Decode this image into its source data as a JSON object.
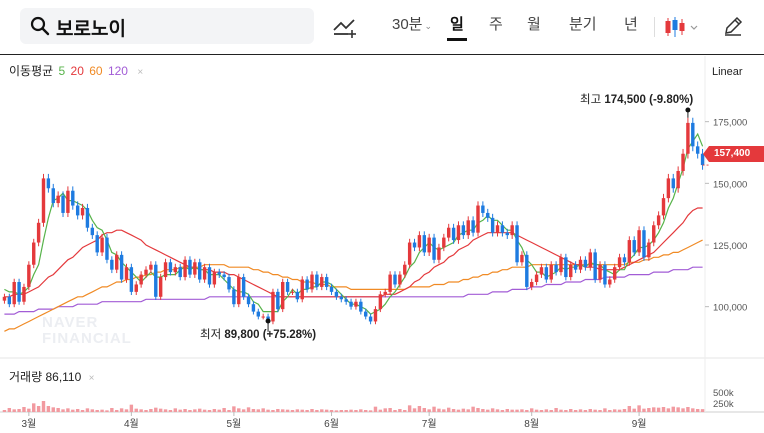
{
  "search": {
    "query": "보로노이"
  },
  "toolbar": {
    "interval": "30분",
    "tabs": [
      "일",
      "주",
      "월",
      "분기",
      "년"
    ],
    "active_tab": "일",
    "icons": [
      "trend-line-add-icon",
      "candlestick-icon",
      "pencil-icon"
    ]
  },
  "legend": {
    "label": "이동평균",
    "ma5": "5",
    "ma20": "20",
    "ma60": "60",
    "ma120": "120",
    "close": "×"
  },
  "scale": {
    "mode": "Linear"
  },
  "volume": {
    "label": "거래량",
    "value": "86,110",
    "close": "×"
  },
  "price_tag": "157,400",
  "watermark": [
    "NAVER",
    "FINANCIAL"
  ],
  "annotations": {
    "high": {
      "prefix": "최고 ",
      "value": "174,500 (-9.80%)"
    },
    "low": {
      "prefix": "최저 ",
      "value": "89,800 (+75.28%)"
    }
  },
  "colors": {
    "up": "#e4393c",
    "down": "#1e7be0",
    "ma5": "#57b34a",
    "ma20": "#e4393c",
    "ma60": "#f08a24",
    "ma120": "#a25cd6",
    "volume": "#f29aa0"
  },
  "chart_data": {
    "type": "candlestick",
    "y_ticks": [
      "175,000",
      "150,000",
      "125,000",
      "100,000"
    ],
    "y_tick_values": [
      175000,
      150000,
      125000,
      100000
    ],
    "ylim": [
      80000,
      200000
    ],
    "x_ticks": [
      "3월",
      "4월",
      "5월",
      "6월",
      "7월",
      "8월",
      "9월"
    ],
    "vol_ticks": [
      "500k",
      "250k"
    ],
    "vol_tick_values": [
      500000,
      250000
    ],
    "vol_ylim": [
      0,
      900000
    ],
    "last_price": 157400,
    "high": 174500,
    "low": 89800,
    "month_start_index": [
      5,
      26,
      47,
      67,
      87,
      108,
      130
    ],
    "close": [
      104000,
      101000,
      110000,
      102000,
      108000,
      117000,
      126000,
      134000,
      152000,
      148000,
      142000,
      145000,
      138000,
      147000,
      141000,
      137000,
      140000,
      132000,
      129000,
      122000,
      128000,
      119000,
      115000,
      121000,
      111000,
      116000,
      106000,
      109000,
      113000,
      115000,
      117000,
      104000,
      112000,
      118000,
      114000,
      116000,
      112000,
      119000,
      113000,
      118000,
      111000,
      116000,
      109000,
      114000,
      113000,
      112000,
      107000,
      101000,
      112000,
      104000,
      101000,
      98000,
      96000,
      96000,
      94000,
      106000,
      99000,
      110000,
      106000,
      106000,
      103000,
      111000,
      107000,
      113000,
      108000,
      112000,
      108000,
      106000,
      104000,
      103000,
      102000,
      100000,
      102000,
      98000,
      96000,
      94000,
      99000,
      105000,
      106000,
      113000,
      109000,
      113000,
      117000,
      126000,
      124000,
      129000,
      122000,
      128000,
      119000,
      124000,
      128000,
      132000,
      127000,
      133000,
      129000,
      135000,
      130000,
      141000,
      138000,
      136000,
      130000,
      133000,
      130000,
      129000,
      133000,
      118000,
      121000,
      108000,
      110000,
      113000,
      116000,
      111000,
      117000,
      114000,
      120000,
      112000,
      117000,
      115000,
      119000,
      116000,
      122000,
      111000,
      117000,
      109000,
      111000,
      116000,
      120000,
      118000,
      127000,
      122000,
      131000,
      120000,
      126000,
      133000,
      137000,
      144000,
      152000,
      148000,
      155000,
      162000,
      174500,
      165000,
      162000,
      157400
    ],
    "ma": {
      "5": [
        107000,
        106000,
        106000,
        105000,
        106000,
        108000,
        113000,
        117000,
        127000,
        136000,
        143000,
        144000,
        146000,
        143000,
        143000,
        142000,
        141000,
        139000,
        135000,
        132000,
        131000,
        127000,
        122000,
        121000,
        118000,
        116000,
        114000,
        112000,
        110000,
        112000,
        114000,
        112000,
        112000,
        113000,
        113000,
        113000,
        115000,
        116000,
        115000,
        116000,
        115000,
        115000,
        113000,
        113000,
        113000,
        111000,
        109000,
        107000,
        106000,
        106000,
        105000,
        102000,
        101000,
        98000,
        98000,
        98000,
        98000,
        102000,
        104000,
        107000,
        105000,
        107000,
        107000,
        108000,
        108000,
        110000,
        110000,
        109000,
        107000,
        105000,
        103000,
        101000,
        101000,
        100000,
        99000,
        97000,
        98000,
        99000,
        101000,
        104000,
        106000,
        109000,
        112000,
        116000,
        118000,
        122000,
        124000,
        126000,
        124000,
        123000,
        124000,
        125000,
        126000,
        129000,
        130000,
        131000,
        131000,
        134000,
        135000,
        137000,
        135000,
        135000,
        133000,
        131000,
        131000,
        127000,
        124000,
        119000,
        117000,
        114000,
        114000,
        112000,
        113000,
        114000,
        116000,
        115000,
        116000,
        116000,
        117000,
        116000,
        118000,
        117000,
        117000,
        115000,
        114000,
        113000,
        115000,
        115000,
        119000,
        121000,
        124000,
        124000,
        125000,
        127000,
        130000,
        134000,
        140000,
        144000,
        150000,
        156000,
        164000,
        167000,
        170000,
        165000
      ],
      "20": [
        104000,
        104000,
        105000,
        105000,
        105000,
        106000,
        107000,
        108000,
        110000,
        112000,
        113000,
        115000,
        117000,
        119000,
        120000,
        122000,
        124000,
        125000,
        126000,
        127000,
        129000,
        130000,
        130000,
        131000,
        131000,
        130000,
        129000,
        128000,
        127000,
        125000,
        124000,
        123000,
        122000,
        121000,
        120000,
        119000,
        118000,
        117000,
        116000,
        116000,
        115000,
        115000,
        115000,
        114000,
        114000,
        114000,
        113000,
        113000,
        112000,
        111000,
        110000,
        109000,
        108000,
        107000,
        106000,
        105000,
        104000,
        104000,
        104000,
        104000,
        104000,
        104000,
        104000,
        104000,
        104000,
        104000,
        104000,
        104000,
        104000,
        104000,
        104000,
        104000,
        104000,
        104000,
        104000,
        104000,
        104000,
        104000,
        105000,
        105000,
        105000,
        106000,
        107000,
        108000,
        110000,
        111000,
        113000,
        114000,
        116000,
        117000,
        118000,
        120000,
        121000,
        123000,
        124000,
        125000,
        127000,
        128000,
        129000,
        130000,
        130000,
        130000,
        130000,
        130000,
        130000,
        129000,
        128000,
        127000,
        126000,
        125000,
        124000,
        123000,
        122000,
        121000,
        120000,
        119000,
        118000,
        117000,
        117000,
        116000,
        116000,
        116000,
        115000,
        115000,
        115000,
        115000,
        115000,
        116000,
        117000,
        118000,
        119000,
        120000,
        121000,
        122000,
        124000,
        126000,
        128000,
        130000,
        132000,
        134000,
        137000,
        139000,
        140000,
        140000
      ],
      "60": [
        90000,
        91000,
        91000,
        92000,
        93000,
        94000,
        95000,
        96000,
        97000,
        98000,
        99000,
        100000,
        101000,
        102000,
        103000,
        104000,
        104000,
        105000,
        106000,
        107000,
        108000,
        108000,
        109000,
        110000,
        110000,
        111000,
        111000,
        112000,
        112000,
        113000,
        113000,
        114000,
        114000,
        115000,
        115000,
        115000,
        116000,
        116000,
        116000,
        116000,
        116000,
        117000,
        117000,
        117000,
        117000,
        117000,
        116000,
        116000,
        116000,
        116000,
        116000,
        115000,
        115000,
        114000,
        114000,
        113000,
        113000,
        112000,
        112000,
        111000,
        111000,
        110000,
        110000,
        110000,
        109000,
        109000,
        109000,
        108000,
        108000,
        108000,
        108000,
        107000,
        107000,
        107000,
        107000,
        107000,
        107000,
        107000,
        107000,
        107000,
        107000,
        107000,
        107000,
        108000,
        108000,
        108000,
        108000,
        108000,
        109000,
        109000,
        109000,
        110000,
        110000,
        110000,
        111000,
        111000,
        112000,
        112000,
        113000,
        113000,
        114000,
        114000,
        115000,
        115000,
        116000,
        116000,
        116000,
        116000,
        117000,
        117000,
        117000,
        117000,
        117000,
        117000,
        117000,
        117000,
        117000,
        117000,
        117000,
        117000,
        117000,
        117000,
        117000,
        117000,
        117000,
        117000,
        117000,
        117000,
        118000,
        118000,
        118000,
        119000,
        119000,
        120000,
        120000,
        121000,
        121000,
        122000,
        122000,
        123000,
        124000,
        125000,
        126000,
        127000
      ],
      "120": [
        97000,
        97000,
        97000,
        98000,
        98000,
        98000,
        98000,
        99000,
        99000,
        99000,
        99000,
        100000,
        100000,
        100000,
        100000,
        101000,
        101000,
        101000,
        101000,
        101000,
        102000,
        102000,
        102000,
        102000,
        102000,
        102000,
        102000,
        102000,
        102000,
        103000,
        103000,
        103000,
        103000,
        103000,
        103000,
        103000,
        103000,
        103000,
        103000,
        103000,
        103000,
        103000,
        104000,
        104000,
        104000,
        104000,
        104000,
        104000,
        104000,
        104000,
        104000,
        104000,
        104000,
        104000,
        104000,
        104000,
        104000,
        104000,
        104000,
        104000,
        104000,
        104000,
        104000,
        104000,
        104000,
        104000,
        104000,
        104000,
        104000,
        104000,
        104000,
        104000,
        104000,
        104000,
        104000,
        104000,
        104000,
        104000,
        104000,
        104000,
        104000,
        104000,
        104000,
        104000,
        104000,
        104000,
        104000,
        104000,
        104000,
        104000,
        104000,
        104000,
        104000,
        104000,
        104000,
        105000,
        105000,
        105000,
        105000,
        105000,
        106000,
        106000,
        106000,
        106000,
        107000,
        107000,
        107000,
        107000,
        108000,
        108000,
        108000,
        109000,
        109000,
        109000,
        109000,
        110000,
        110000,
        110000,
        110000,
        111000,
        111000,
        111000,
        111000,
        112000,
        112000,
        112000,
        112000,
        112000,
        113000,
        113000,
        113000,
        113000,
        113000,
        114000,
        114000,
        114000,
        114000,
        115000,
        115000,
        115000,
        115000,
        116000,
        116000,
        116000
      ]
    },
    "volume": [
      60000,
      120000,
      80000,
      90000,
      150000,
      100000,
      260000,
      180000,
      330000,
      180000,
      140000,
      120000,
      80000,
      110000,
      70000,
      90000,
      60000,
      110000,
      80000,
      60000,
      70000,
      50000,
      120000,
      60000,
      110000,
      80000,
      220000,
      100000,
      80000,
      60000,
      90000,
      130000,
      100000,
      80000,
      60000,
      110000,
      70000,
      90000,
      60000,
      80000,
      100000,
      70000,
      60000,
      90000,
      70000,
      120000,
      60000,
      170000,
      110000,
      80000,
      140000,
      90000,
      80000,
      110000,
      70000,
      60000,
      90000,
      80000,
      70000,
      60000,
      80000,
      70000,
      60000,
      90000,
      60000,
      80000,
      70000,
      60000,
      50000,
      60000,
      60000,
      70000,
      60000,
      80000,
      60000,
      50000,
      160000,
      70000,
      110000,
      120000,
      60000,
      90000,
      60000,
      200000,
      110000,
      180000,
      120000,
      80000,
      160000,
      100000,
      80000,
      130000,
      90000,
      70000,
      100000,
      80000,
      160000,
      120000,
      90000,
      70000,
      110000,
      80000,
      60000,
      90000,
      70000,
      70000,
      80000,
      60000,
      110000,
      70000,
      60000,
      80000,
      60000,
      120000,
      70000,
      60000,
      90000,
      60000,
      80000,
      60000,
      90000,
      70000,
      60000,
      110000,
      60000,
      80000,
      70000,
      90000,
      180000,
      100000,
      200000,
      100000,
      120000,
      140000,
      130000,
      150000,
      110000,
      160000,
      140000,
      110000,
      150000,
      110000,
      90000,
      86110
    ]
  }
}
